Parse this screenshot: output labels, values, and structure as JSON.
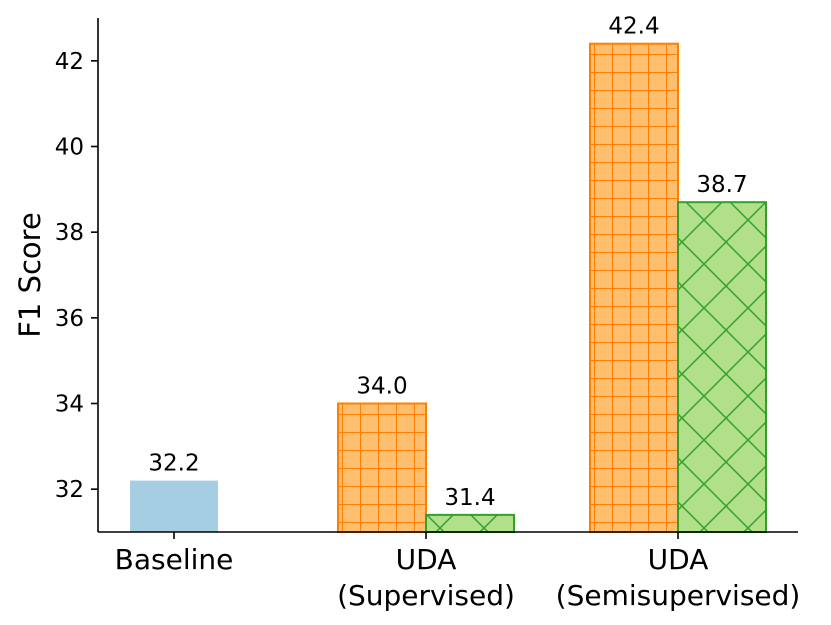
{
  "chart_data": {
    "type": "bar",
    "title": "",
    "xlabel": "",
    "ylabel": "F1 Score",
    "ylim": [
      31.0,
      43.0
    ],
    "yticks": [
      "32",
      "34",
      "36",
      "38",
      "40",
      "42"
    ],
    "grid": false,
    "categories": [
      {
        "lines": [
          "Baseline"
        ]
      },
      {
        "lines": [
          "UDA",
          "(Supervised)"
        ]
      },
      {
        "lines": [
          "UDA",
          "(Semisupervised)"
        ]
      }
    ],
    "bars": [
      {
        "category": 0,
        "slot": "center",
        "value": 32.2,
        "label": "32.2",
        "fill": "#a6cee3",
        "stroke": "#a6cee3",
        "hatch": "none"
      },
      {
        "category": 1,
        "slot": "left",
        "value": 34.0,
        "label": "34.0",
        "fill": "#fdbf6f",
        "stroke": "#ff7f00",
        "hatch": "grid"
      },
      {
        "category": 1,
        "slot": "right",
        "value": 31.4,
        "label": "31.4",
        "fill": "#b2df8a",
        "stroke": "#33a02c",
        "hatch": "cross"
      },
      {
        "category": 2,
        "slot": "left",
        "value": 42.4,
        "label": "42.4",
        "fill": "#fdbf6f",
        "stroke": "#ff7f00",
        "hatch": "grid"
      },
      {
        "category": 2,
        "slot": "right",
        "value": 38.7,
        "label": "38.7",
        "fill": "#b2df8a",
        "stroke": "#33a02c",
        "hatch": "cross"
      }
    ]
  }
}
